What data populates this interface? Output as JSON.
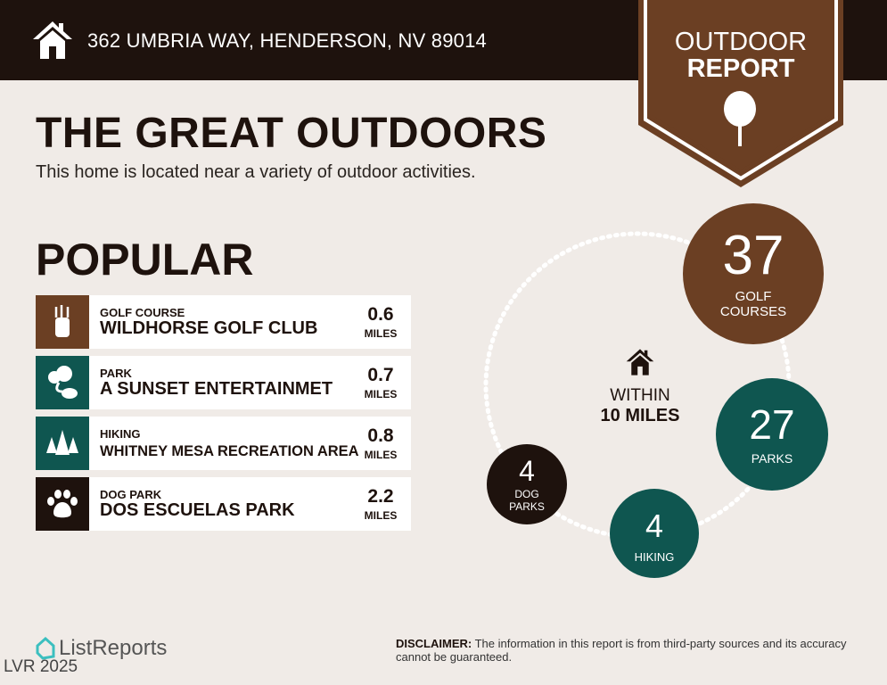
{
  "header": {
    "address": "362 UMBRIA WAY, HENDERSON, NV 89014",
    "icon": "home-icon"
  },
  "badge": {
    "line1": "OUTDOOR",
    "line2": "REPORT",
    "icon": "tree-icon"
  },
  "title": "THE GREAT OUTDOORS",
  "subtitle": "This home is located near a variety of outdoor activities.",
  "popular": {
    "heading": "POPULAR",
    "items": [
      {
        "category": "GOLF COURSE",
        "name": "WILDHORSE GOLF CLUB",
        "distance": "0.6",
        "unit": "MILES",
        "icon": "golf-bag-icon",
        "color": "#6b3f23"
      },
      {
        "category": "PARK",
        "name": "A SUNSET ENTERTAINMET",
        "distance": "0.7",
        "unit": "MILES",
        "icon": "park-icon",
        "color": "#0f5650"
      },
      {
        "category": "HIKING",
        "name": "WHITNEY MESA RECREATION AREA",
        "distance": "0.8",
        "unit": "MILES",
        "icon": "pine-trees-icon",
        "color": "#0f5650"
      },
      {
        "category": "DOG PARK",
        "name": "DOS ESCUELAS PARK",
        "distance": "2.2",
        "unit": "MILES",
        "icon": "paw-icon",
        "color": "#1e120d"
      }
    ]
  },
  "summary": {
    "center_line1": "WITHIN",
    "center_line2": "10 MILES",
    "golf": {
      "count": "37",
      "label1": "GOLF",
      "label2": "COURSES"
    },
    "parks": {
      "count": "27",
      "label1": "PARKS"
    },
    "hiking": {
      "count": "4",
      "label1": "HIKING"
    },
    "dog": {
      "count": "4",
      "label1": "DOG",
      "label2": "PARKS"
    }
  },
  "footer": {
    "logo": "ListReports",
    "watermark": "LVR 2025",
    "disclaimer_label": "DISCLAIMER:",
    "disclaimer_text": " The information in this report is from third-party sources and its accuracy cannot be guaranteed."
  },
  "colors": {
    "dark": "#1e120d",
    "brown": "#6b3f23",
    "teal": "#0f5650",
    "background": "#f0ebe7"
  }
}
